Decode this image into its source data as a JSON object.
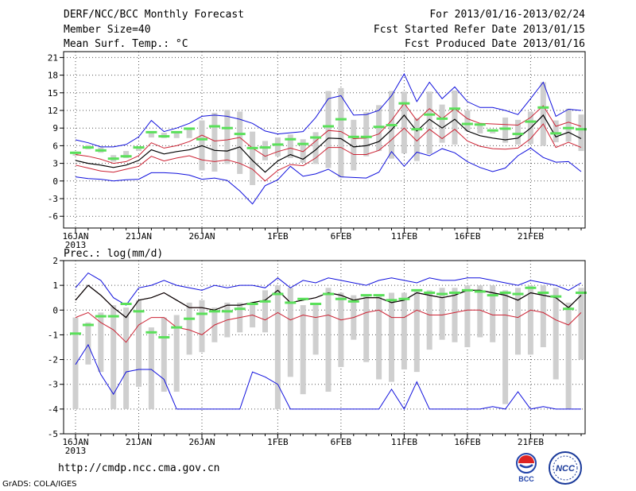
{
  "header": {
    "title": "DERF/NCC/BCC Monthly Forecast",
    "member": "Member Size=40",
    "variable": "Mean Surf. Temp.: °C",
    "period": "For 2013/01/16-2013/02/24",
    "start": "Fcst Started Refer Date 2013/01/15",
    "produced": "Fcst Produced Date 2013/01/16"
  },
  "footer": {
    "url": "http://cmdp.ncc.cma.gov.cn",
    "grads": "GrADS: COLA/IGES"
  },
  "logos": {
    "bcc": "BCC",
    "ncc": "NCC"
  },
  "colors": {
    "bar": "#cfcfcf",
    "median": "#5ae05a",
    "mean": "#000000",
    "inner": "#cc2233",
    "outer": "#1010dd",
    "grid": "#555555"
  },
  "chart_data": [
    {
      "type": "line",
      "name": "temperature",
      "ylim": [
        -8,
        22
      ],
      "yticks": [
        21,
        18,
        15,
        12,
        9,
        6,
        3,
        0,
        -3,
        -6
      ],
      "xtick_labels": [
        "16JAN",
        "21JAN",
        "26JAN",
        "1FEB",
        "6FEB",
        "11FEB",
        "16FEB",
        "21FEB"
      ],
      "xtick_index": [
        0,
        5,
        10,
        16,
        21,
        26,
        31,
        36
      ],
      "year_label": "2013",
      "series": [
        {
          "name": "max",
          "values": [
            7.0,
            6.5,
            5.8,
            5.8,
            6.2,
            7.5,
            10.3,
            8.4,
            9.0,
            9.8,
            11.0,
            11.2,
            11.0,
            10.5,
            9.8,
            8.5,
            8.0,
            8.2,
            8.4,
            10.8,
            14.0,
            14.5,
            11.2,
            11.3,
            12.0,
            14.5,
            18.2,
            13.5,
            16.8,
            14.0,
            16.0,
            13.5,
            12.5,
            12.5,
            12.0,
            11.3,
            14.0,
            16.8,
            11.0,
            12.2,
            12.0
          ]
        },
        {
          "name": "upper",
          "values": [
            4.5,
            4.2,
            3.7,
            3.0,
            3.3,
            4.3,
            6.5,
            5.6,
            6.0,
            6.7,
            7.8,
            6.8,
            7.0,
            7.4,
            5.6,
            4.2,
            5.0,
            5.6,
            5.0,
            6.8,
            8.6,
            8.4,
            7.2,
            7.3,
            8.0,
            10.3,
            13.2,
            10.3,
            12.3,
            10.6,
            12.3,
            10.6,
            9.8,
            9.7,
            9.6,
            9.5,
            10.8,
            12.8,
            9.3,
            10.0,
            9.3
          ]
        },
        {
          "name": "mean",
          "values": [
            3.5,
            3.0,
            2.7,
            2.3,
            2.7,
            3.5,
            5.3,
            4.6,
            5.0,
            5.3,
            6.0,
            5.2,
            5.1,
            5.8,
            3.5,
            1.5,
            3.4,
            4.5,
            3.7,
            5.3,
            7.3,
            7.2,
            5.8,
            6.0,
            6.7,
            8.7,
            11.2,
            8.5,
            10.5,
            9.0,
            10.5,
            8.5,
            7.7,
            7.3,
            7.0,
            7.3,
            9.0,
            11.2,
            7.5,
            8.3,
            7.2
          ]
        },
        {
          "name": "lower",
          "values": [
            2.7,
            2.2,
            1.7,
            1.5,
            2.0,
            2.5,
            4.2,
            3.4,
            3.9,
            4.3,
            3.6,
            3.3,
            3.6,
            3.0,
            2.0,
            0.0,
            1.8,
            2.8,
            2.6,
            3.9,
            5.7,
            5.7,
            4.5,
            4.5,
            5.2,
            7.0,
            9.0,
            6.8,
            8.8,
            7.2,
            8.8,
            6.8,
            5.9,
            5.5,
            5.4,
            5.6,
            7.2,
            9.7,
            5.7,
            6.6,
            5.7
          ]
        },
        {
          "name": "min",
          "values": [
            0.7,
            0.4,
            0.3,
            0.0,
            0.2,
            0.3,
            1.4,
            1.4,
            1.3,
            1.0,
            0.3,
            0.5,
            0.1,
            -1.7,
            -3.9,
            -0.8,
            0.2,
            2.5,
            0.8,
            1.2,
            2.0,
            0.7,
            0.6,
            0.5,
            1.5,
            5.0,
            2.5,
            4.9,
            4.3,
            5.5,
            4.8,
            3.3,
            2.3,
            1.6,
            2.2,
            4.3,
            5.6,
            4.0,
            3.2,
            3.3,
            1.6
          ]
        },
        {
          "name": "median",
          "values": [
            4.8,
            5.7,
            5.2,
            3.8,
            4.2,
            5.7,
            8.3,
            7.6,
            8.3,
            8.9,
            7.1,
            9.3,
            9.0,
            8.0,
            5.6,
            5.7,
            6.2,
            7.1,
            6.3,
            7.4,
            9.3,
            10.5,
            7.5,
            7.5,
            9.2,
            9.5,
            13.2,
            8.8,
            11.3,
            10.6,
            12.3,
            9.7,
            9.6,
            8.6,
            8.9,
            8.0,
            10.1,
            12.5,
            8.1,
            9.0,
            8.8
          ]
        },
        {
          "name": "bar_top",
          "values": [
            5.0,
            6.1,
            5.7,
            4.4,
            5.1,
            5.9,
            8.3,
            8.2,
            8.3,
            8.8,
            10.3,
            11.6,
            12.1,
            11.8,
            8.4,
            6.8,
            7.4,
            7.9,
            7.1,
            8.3,
            15.3,
            15.8,
            10.4,
            11.7,
            12.9,
            15.3,
            15.2,
            10.7,
            15.2,
            13.0,
            15.4,
            12.0,
            9.7,
            8.4,
            10.8,
            10.4,
            11.8,
            16.8,
            10.3,
            12.3,
            11.3
          ]
        },
        {
          "name": "bar_bottom",
          "values": [
            4.3,
            5.4,
            4.8,
            3.3,
            3.9,
            5.1,
            7.4,
            7.3,
            7.3,
            7.3,
            1.8,
            1.6,
            2.9,
            1.2,
            -0.7,
            3.5,
            4.2,
            3.9,
            3.1,
            2.9,
            2.2,
            0.6,
            1.8,
            4.2,
            5.1,
            3.8,
            4.7,
            3.4,
            4.6,
            6.5,
            6.2,
            8.5,
            8.1,
            8.1,
            6.5,
            6.2,
            6.3,
            6.0,
            6.6,
            6.7,
            5.1
          ]
        }
      ]
    },
    {
      "type": "line",
      "name": "precipitation",
      "ylabel": "Prec.: log(mm/d)",
      "ylim": [
        -5,
        2
      ],
      "yticks": [
        2,
        1,
        0,
        -1,
        -2,
        -3,
        -4,
        -5
      ],
      "xtick_labels": [
        "16JAN",
        "21JAN",
        "26JAN",
        "1FEB",
        "6FEB",
        "11FEB",
        "16FEB",
        "21FEB"
      ],
      "xtick_index": [
        0,
        5,
        10,
        16,
        21,
        26,
        31,
        36
      ],
      "year_label": "2013",
      "series": [
        {
          "name": "max",
          "values": [
            0.9,
            1.5,
            1.2,
            0.5,
            0.2,
            0.9,
            1.0,
            1.2,
            1.0,
            0.9,
            0.8,
            1.0,
            0.9,
            1.0,
            1.0,
            0.9,
            1.3,
            0.9,
            1.2,
            1.1,
            1.3,
            1.2,
            1.1,
            1.0,
            1.2,
            1.3,
            1.2,
            1.1,
            1.3,
            1.2,
            1.2,
            1.3,
            1.3,
            1.2,
            1.1,
            1.0,
            1.2,
            1.1,
            1.0,
            0.8,
            1.1
          ]
        },
        {
          "name": "mean",
          "values": [
            0.4,
            1.0,
            0.6,
            0.1,
            -0.3,
            0.4,
            0.5,
            0.7,
            0.4,
            0.1,
            0.1,
            0.0,
            0.2,
            0.2,
            0.3,
            0.4,
            0.8,
            0.3,
            0.4,
            0.5,
            0.7,
            0.6,
            0.4,
            0.5,
            0.5,
            0.3,
            0.4,
            0.7,
            0.6,
            0.5,
            0.6,
            0.8,
            0.8,
            0.7,
            0.6,
            0.4,
            0.7,
            0.6,
            0.5,
            0.1,
            0.6
          ]
        },
        {
          "name": "upper",
          "values": [
            0.4,
            1.0,
            0.6,
            0.1,
            -0.3,
            0.4,
            0.5,
            0.7,
            0.4,
            0.1,
            0.1,
            0.0,
            0.2,
            0.2,
            0.3,
            0.4,
            0.8,
            0.3,
            0.4,
            0.5,
            0.7,
            0.6,
            0.4,
            0.5,
            0.5,
            0.3,
            0.4,
            0.7,
            0.6,
            0.5,
            0.6,
            0.8,
            0.8,
            0.7,
            0.6,
            0.4,
            0.7,
            0.6,
            0.5,
            0.1,
            0.6
          ]
        },
        {
          "name": "lower",
          "values": [
            -0.3,
            -0.1,
            -0.5,
            -0.8,
            -1.3,
            -0.6,
            -0.3,
            -0.3,
            -0.7,
            -0.8,
            -1.0,
            -0.6,
            -0.4,
            -0.3,
            -0.2,
            -0.4,
            -0.1,
            -0.4,
            -0.2,
            -0.3,
            -0.2,
            -0.4,
            -0.3,
            -0.1,
            0.0,
            -0.3,
            -0.3,
            0.0,
            -0.2,
            -0.2,
            -0.1,
            0.0,
            0.0,
            -0.2,
            -0.2,
            -0.3,
            0.0,
            -0.1,
            -0.4,
            -0.6,
            -0.1
          ]
        },
        {
          "name": "min",
          "values": [
            -2.2,
            -1.4,
            -2.6,
            -3.4,
            -2.5,
            -2.4,
            -2.4,
            -2.8,
            -4.0,
            -4.0,
            -4.0,
            -4.0,
            -4.0,
            -4.0,
            -2.5,
            -2.7,
            -3.0,
            -4.0,
            -4.0,
            -4.0,
            -4.0,
            -4.0,
            -4.0,
            -4.0,
            -4.0,
            -3.2,
            -4.0,
            -2.9,
            -4.0,
            -4.0,
            -4.0,
            -4.0,
            -4.0,
            -3.9,
            -4.0,
            -3.3,
            -4.0,
            -3.9,
            -4.0,
            -4.0,
            -4.0
          ]
        },
        {
          "name": "median",
          "values": [
            -0.95,
            -0.6,
            -0.25,
            -0.25,
            0.25,
            -0.05,
            -0.9,
            -1.1,
            -0.7,
            -0.35,
            -0.15,
            -0.05,
            -0.05,
            0.05,
            0.25,
            0.35,
            0.65,
            0.3,
            0.45,
            0.25,
            0.65,
            0.45,
            0.35,
            0.6,
            0.6,
            0.4,
            0.45,
            0.8,
            0.7,
            0.65,
            0.7,
            0.8,
            0.75,
            0.6,
            0.7,
            0.65,
            0.9,
            0.7,
            0.55,
            0.05,
            0.7
          ]
        },
        {
          "name": "bar_top",
          "values": [
            -0.3,
            -0.5,
            -0.1,
            0.2,
            0.1,
            0.4,
            -0.7,
            -0.3,
            -0.2,
            0.3,
            0.4,
            0.1,
            0.3,
            0.3,
            0.2,
            0.8,
            1.0,
            0.9,
            0.2,
            0.2,
            0.9,
            0.7,
            0.6,
            0.6,
            0.6,
            0.7,
            0.7,
            0.8,
            0.8,
            0.9,
            0.9,
            1.0,
            1.0,
            1.0,
            0.8,
            0.9,
            1.0,
            1.0,
            0.9,
            0.3,
            0.9
          ]
        },
        {
          "name": "bar_bottom",
          "values": [
            -4.0,
            -2.2,
            -2.5,
            -4.0,
            -4.0,
            -3.1,
            -4.0,
            -3.3,
            -3.3,
            -1.8,
            -1.7,
            -1.3,
            -1.1,
            -0.9,
            -0.7,
            -0.9,
            -4.0,
            -2.7,
            -3.4,
            -1.8,
            -3.3,
            -2.3,
            -1.2,
            -2.1,
            -2.8,
            -2.9,
            -2.4,
            -2.5,
            -1.6,
            -1.2,
            -1.3,
            -1.5,
            -1.1,
            -1.3,
            -3.8,
            -1.8,
            -1.8,
            -1.5,
            -2.8,
            -4.0,
            -2.0
          ]
        }
      ]
    }
  ]
}
